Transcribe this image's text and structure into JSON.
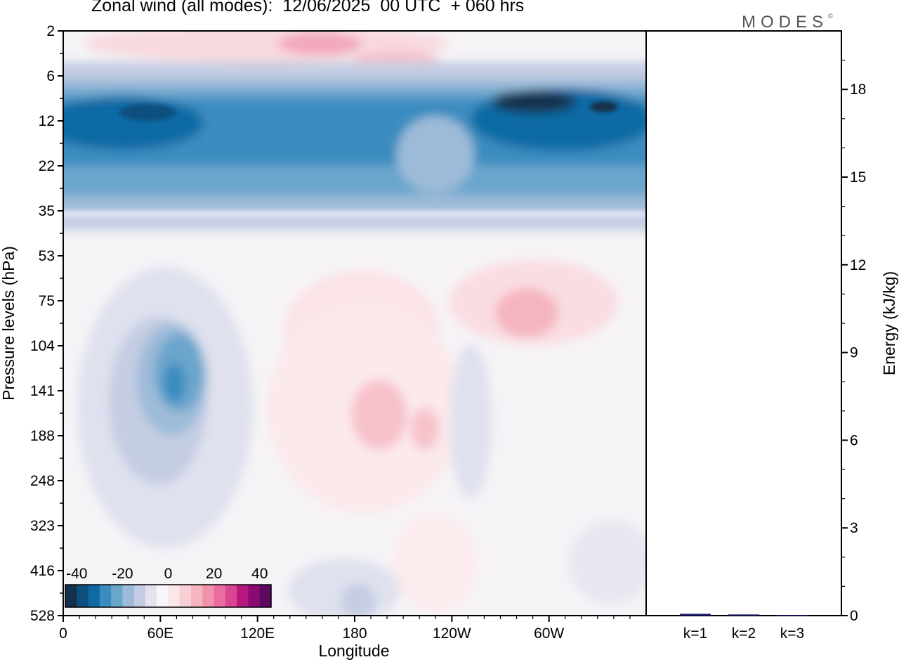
{
  "title": "Zonal wind (all modes):  12/06/2025  00 UTC  + 060 hrs",
  "logo": "MODES",
  "chart_data": [
    {
      "type": "heatmap",
      "title": "Zonal wind (all modes):  12/06/2025  00 UTC  + 060 hrs",
      "xlabel": "Longitude",
      "ylabel": "Pressure levels (hPa)",
      "x_ticks": [
        "0",
        "60E",
        "120E",
        "180",
        "120W",
        "60W"
      ],
      "y_ticks": [
        "2",
        "6",
        "12",
        "22",
        "35",
        "53",
        "75",
        "104",
        "141",
        "188",
        "248",
        "323",
        "416",
        "528"
      ],
      "colorbar": {
        "ticks": [
          "-40",
          "-20",
          "0",
          "20",
          "40"
        ],
        "colors": [
          "#15304d",
          "#0e4f7e",
          "#0f6aa4",
          "#3a8cc0",
          "#6aa5cc",
          "#9dbbd9",
          "#c4cce3",
          "#e3e3ef",
          "#f8f6f9",
          "#fbe6e8",
          "#f7cfd5",
          "#f5b5c0",
          "#f291aa",
          "#e96da0",
          "#d94592",
          "#b7187f",
          "#8a0b72",
          "#5c0a61"
        ]
      },
      "grid": false
    },
    {
      "type": "bar",
      "categories": [
        "k=1",
        "k=2",
        "k=3"
      ],
      "values": [
        0.06,
        0.04,
        0.02
      ],
      "ylabel": "Energy (kJ/kg)",
      "y_ticks": [
        "0",
        "3",
        "6",
        "9",
        "12",
        "15",
        "18"
      ],
      "ylim": [
        0,
        20
      ]
    }
  ],
  "colors": {
    "bar": "#1a1a6e",
    "frame": "#000000"
  }
}
